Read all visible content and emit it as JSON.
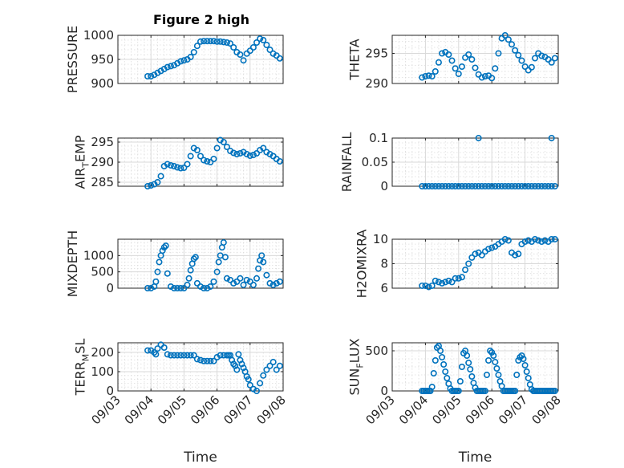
{
  "figure": {
    "title": "Figure 2 high",
    "marker_color": "#0072bd",
    "x_tick_labels": [
      "09/03",
      "09/04",
      "09/05",
      "09/06",
      "09/07",
      "09/08"
    ]
  },
  "chart_data": [
    {
      "type": "scatter",
      "marker": "circle-open",
      "ylabel": "PRESSURE",
      "xlabel": "",
      "title": "Figure 2 high",
      "xlim": [
        "09/03",
        "09/08"
      ],
      "ylim": [
        900,
        1000
      ],
      "yticks": [
        900,
        950,
        1000
      ],
      "ytick_labels": [
        "900",
        "950",
        "1000"
      ],
      "grid": "on",
      "x_days": [
        0.9,
        1.0,
        1.1,
        1.2,
        1.3,
        1.4,
        1.5,
        1.6,
        1.7,
        1.8,
        1.9,
        2.0,
        2.1,
        2.2,
        2.3,
        2.4,
        2.5,
        2.6,
        2.7,
        2.8,
        2.9,
        3.0,
        3.1,
        3.2,
        3.3,
        3.4,
        3.5,
        3.6,
        3.7,
        3.8,
        3.9,
        4.0,
        4.1,
        4.2,
        4.3,
        4.4,
        4.5,
        4.6,
        4.7,
        4.8,
        4.9
      ],
      "y": [
        915,
        915,
        918,
        922,
        926,
        930,
        934,
        936,
        938,
        942,
        946,
        948,
        950,
        955,
        965,
        978,
        987,
        988,
        988,
        988,
        988,
        987,
        987,
        986,
        985,
        983,
        975,
        965,
        960,
        948,
        962,
        968,
        975,
        985,
        993,
        990,
        980,
        970,
        962,
        958,
        952
      ]
    },
    {
      "type": "scatter",
      "marker": "circle-open",
      "ylabel": "THETA",
      "xlabel": "",
      "xlim": [
        "09/03",
        "09/08"
      ],
      "ylim": [
        290,
        298
      ],
      "yticks": [
        290,
        295
      ],
      "ytick_labels": [
        "290",
        "295"
      ],
      "grid": "on",
      "x_days": [
        0.9,
        1.0,
        1.1,
        1.2,
        1.3,
        1.4,
        1.5,
        1.6,
        1.7,
        1.8,
        1.9,
        2.0,
        2.1,
        2.2,
        2.3,
        2.4,
        2.5,
        2.6,
        2.7,
        2.8,
        2.9,
        3.0,
        3.1,
        3.2,
        3.3,
        3.4,
        3.5,
        3.6,
        3.7,
        3.8,
        3.9,
        4.0,
        4.1,
        4.2,
        4.3,
        4.4,
        4.5,
        4.6,
        4.7,
        4.8,
        4.9
      ],
      "y": [
        291,
        291.2,
        291.3,
        291.2,
        292,
        293.5,
        295,
        295.2,
        294.8,
        293.8,
        292.5,
        291.6,
        292.8,
        294.3,
        294.8,
        294,
        292.6,
        291.5,
        291,
        291.2,
        291.3,
        290.9,
        292.5,
        295,
        297.5,
        298,
        297.3,
        296.5,
        295.5,
        294.7,
        293.8,
        292.8,
        292.2,
        292.7,
        294.2,
        295,
        294.6,
        294.4,
        294,
        293.5,
        294.2
      ]
    },
    {
      "type": "scatter",
      "marker": "circle-open",
      "ylabel": "AIR_TEMP",
      "xlabel": "",
      "xlim": [
        "09/03",
        "09/08"
      ],
      "ylim": [
        284,
        296
      ],
      "yticks": [
        285,
        290,
        295
      ],
      "ytick_labels": [
        "285",
        "290",
        "295"
      ],
      "grid": "on",
      "x_days": [
        0.9,
        1.0,
        1.1,
        1.2,
        1.3,
        1.4,
        1.5,
        1.6,
        1.7,
        1.8,
        1.9,
        2.0,
        2.1,
        2.2,
        2.3,
        2.4,
        2.5,
        2.6,
        2.7,
        2.8,
        2.9,
        3.0,
        3.1,
        3.2,
        3.3,
        3.4,
        3.5,
        3.6,
        3.7,
        3.8,
        3.9,
        4.0,
        4.1,
        4.2,
        4.3,
        4.4,
        4.5,
        4.6,
        4.7,
        4.8,
        4.9
      ],
      "y": [
        284,
        284.2,
        284.5,
        285,
        286.5,
        289,
        289.5,
        289.2,
        289,
        288.7,
        288.5,
        288.6,
        289.5,
        291.5,
        293.5,
        293,
        291.5,
        290.5,
        290.2,
        290,
        290.8,
        293.5,
        295.5,
        295,
        293.8,
        292.8,
        292.3,
        292,
        292.2,
        292.5,
        292,
        291.6,
        291.8,
        292.2,
        293,
        293.5,
        292.5,
        292,
        291.5,
        290.8,
        290.2
      ]
    },
    {
      "type": "scatter",
      "marker": "circle-open",
      "ylabel": "RAINFALL",
      "xlabel": "",
      "xlim": [
        "09/03",
        "09/08"
      ],
      "ylim": [
        0,
        0.1
      ],
      "yticks": [
        0,
        0.05,
        0.1
      ],
      "ytick_labels": [
        "0",
        "0.05",
        "0.1"
      ],
      "grid": "on",
      "x_days": [
        0.9,
        1.0,
        1.1,
        1.2,
        1.3,
        1.4,
        1.5,
        1.6,
        1.7,
        1.8,
        1.9,
        2.0,
        2.1,
        2.2,
        2.3,
        2.4,
        2.5,
        2.6,
        2.7,
        2.8,
        2.9,
        3.0,
        3.1,
        3.2,
        3.3,
        3.4,
        3.5,
        3.6,
        3.7,
        3.8,
        3.9,
        4.0,
        4.1,
        4.2,
        4.3,
        4.4,
        4.5,
        4.6,
        4.7,
        4.8,
        4.9,
        2.6,
        4.8
      ],
      "y": [
        0,
        0,
        0,
        0,
        0,
        0,
        0,
        0,
        0,
        0,
        0,
        0,
        0,
        0,
        0,
        0,
        0,
        0,
        0,
        0,
        0,
        0,
        0,
        0,
        0,
        0,
        0,
        0,
        0,
        0,
        0,
        0,
        0,
        0,
        0,
        0,
        0,
        0,
        0,
        0,
        0,
        0.1,
        0.1
      ]
    },
    {
      "type": "scatter",
      "marker": "circle-open",
      "ylabel": "MIXDEPTH",
      "xlabel": "",
      "xlim": [
        "09/03",
        "09/08"
      ],
      "ylim": [
        0,
        1500
      ],
      "yticks": [
        0,
        500,
        1000
      ],
      "ytick_labels": [
        "0",
        "500",
        "1000"
      ],
      "grid": "on",
      "x_days": [
        0.9,
        1.0,
        1.1,
        1.15,
        1.2,
        1.25,
        1.3,
        1.35,
        1.4,
        1.45,
        1.5,
        1.6,
        1.7,
        1.8,
        1.9,
        2.0,
        2.1,
        2.15,
        2.2,
        2.25,
        2.3,
        2.35,
        2.4,
        2.5,
        2.6,
        2.7,
        2.8,
        2.9,
        3.0,
        3.05,
        3.1,
        3.15,
        3.2,
        3.25,
        3.3,
        3.4,
        3.5,
        3.6,
        3.7,
        3.8,
        3.9,
        4.0,
        4.1,
        4.2,
        4.25,
        4.3,
        4.35,
        4.4,
        4.5,
        4.6,
        4.7,
        4.8,
        4.9
      ],
      "y": [
        0,
        0,
        50,
        200,
        500,
        800,
        1000,
        1150,
        1250,
        1300,
        450,
        50,
        0,
        0,
        0,
        0,
        100,
        300,
        550,
        750,
        900,
        950,
        150,
        50,
        0,
        0,
        50,
        200,
        500,
        800,
        1000,
        1250,
        1400,
        950,
        300,
        250,
        150,
        200,
        300,
        100,
        250,
        200,
        100,
        300,
        600,
        850,
        1000,
        800,
        400,
        150,
        100,
        150,
        200
      ]
    },
    {
      "type": "scatter",
      "marker": "circle-open",
      "ylabel": "H2OMIXRA",
      "xlabel": "",
      "xlim": [
        "09/03",
        "09/08"
      ],
      "ylim": [
        6,
        10
      ],
      "yticks": [
        6,
        8,
        10
      ],
      "ytick_labels": [
        "6",
        "8",
        "10"
      ],
      "grid": "on",
      "x_days": [
        0.9,
        1.0,
        1.1,
        1.2,
        1.3,
        1.4,
        1.5,
        1.6,
        1.7,
        1.8,
        1.9,
        2.0,
        2.1,
        2.2,
        2.3,
        2.4,
        2.5,
        2.6,
        2.7,
        2.8,
        2.9,
        3.0,
        3.1,
        3.2,
        3.3,
        3.4,
        3.5,
        3.6,
        3.7,
        3.8,
        3.9,
        4.0,
        4.1,
        4.2,
        4.3,
        4.4,
        4.5,
        4.6,
        4.7,
        4.8,
        4.9
      ],
      "y": [
        6.2,
        6.2,
        6.1,
        6.2,
        6.6,
        6.5,
        6.4,
        6.5,
        6.6,
        6.5,
        6.8,
        6.8,
        6.9,
        7.5,
        8.0,
        8.5,
        8.8,
        8.9,
        8.7,
        9.0,
        9.2,
        9.3,
        9.4,
        9.6,
        9.8,
        10.0,
        9.9,
        8.9,
        8.7,
        8.8,
        9.6,
        9.8,
        9.9,
        9.8,
        10.0,
        9.9,
        9.8,
        9.9,
        9.8,
        10.0,
        10.0
      ]
    },
    {
      "type": "scatter",
      "marker": "circle-open",
      "ylabel": "TERR_MSL",
      "xlabel": "Time",
      "xlim": [
        "09/03",
        "09/08"
      ],
      "ylim": [
        0,
        250
      ],
      "yticks": [
        0,
        100,
        200
      ],
      "ytick_labels": [
        "0",
        "100",
        "200"
      ],
      "grid": "on",
      "x_days": [
        0.9,
        1.0,
        1.1,
        1.15,
        1.2,
        1.3,
        1.4,
        1.5,
        1.6,
        1.7,
        1.8,
        1.9,
        2.0,
        2.1,
        2.2,
        2.3,
        2.4,
        2.5,
        2.6,
        2.7,
        2.8,
        2.9,
        3.0,
        3.1,
        3.2,
        3.3,
        3.35,
        3.4,
        3.45,
        3.5,
        3.55,
        3.6,
        3.65,
        3.7,
        3.75,
        3.8,
        3.85,
        3.9,
        3.95,
        4.0,
        4.1,
        4.2,
        4.3,
        4.4,
        4.5,
        4.6,
        4.7,
        4.8,
        4.9
      ],
      "y": [
        210,
        210,
        200,
        190,
        220,
        240,
        225,
        190,
        185,
        185,
        185,
        185,
        185,
        185,
        185,
        185,
        165,
        160,
        155,
        155,
        155,
        155,
        175,
        185,
        185,
        185,
        185,
        185,
        160,
        140,
        130,
        110,
        190,
        160,
        140,
        120,
        100,
        75,
        60,
        30,
        10,
        0,
        40,
        80,
        110,
        130,
        150,
        110,
        130
      ]
    },
    {
      "type": "scatter",
      "marker": "circle-open",
      "ylabel": "SUN_FLUX",
      "xlabel": "Time",
      "xlim": [
        "09/03",
        "09/08"
      ],
      "ylim": [
        0,
        600
      ],
      "yticks": [
        0,
        500
      ],
      "ytick_labels": [
        "0",
        "500"
      ],
      "grid": "on",
      "x_days": [
        0.9,
        0.95,
        1.0,
        1.05,
        1.1,
        1.15,
        1.2,
        1.25,
        1.3,
        1.35,
        1.4,
        1.45,
        1.5,
        1.55,
        1.6,
        1.65,
        1.7,
        1.75,
        1.8,
        1.85,
        1.9,
        1.95,
        2.0,
        2.05,
        2.1,
        2.15,
        2.2,
        2.25,
        2.3,
        2.35,
        2.4,
        2.45,
        2.5,
        2.55,
        2.6,
        2.65,
        2.7,
        2.75,
        2.8,
        2.85,
        2.9,
        2.95,
        3.0,
        3.05,
        3.1,
        3.15,
        3.2,
        3.25,
        3.3,
        3.35,
        3.4,
        3.45,
        3.5,
        3.55,
        3.6,
        3.65,
        3.7,
        3.75,
        3.8,
        3.85,
        3.9,
        3.95,
        4.0,
        4.05,
        4.1,
        4.15,
        4.2,
        4.25,
        4.3,
        4.35,
        4.4,
        4.45,
        4.5,
        4.55,
        4.6,
        4.65,
        4.7,
        4.75,
        4.8,
        4.85,
        4.9
      ],
      "y": [
        0,
        0,
        0,
        0,
        0,
        0,
        50,
        220,
        380,
        540,
        560,
        500,
        420,
        330,
        240,
        160,
        90,
        30,
        0,
        0,
        0,
        0,
        0,
        120,
        300,
        470,
        500,
        440,
        350,
        270,
        180,
        100,
        40,
        0,
        0,
        0,
        0,
        0,
        0,
        200,
        380,
        500,
        480,
        440,
        360,
        280,
        200,
        120,
        60,
        0,
        0,
        0,
        0,
        0,
        0,
        0,
        0,
        200,
        380,
        420,
        440,
        400,
        320,
        240,
        160,
        80,
        20,
        0,
        0,
        0,
        0,
        0,
        0,
        0,
        0,
        0,
        0,
        0,
        0,
        0,
        0
      ]
    }
  ]
}
